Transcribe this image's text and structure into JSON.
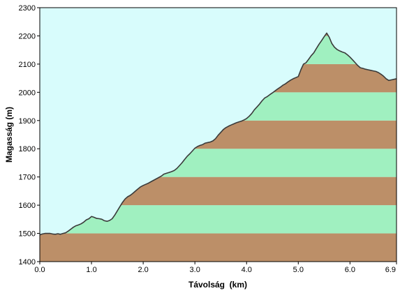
{
  "chart_data": {
    "type": "area",
    "xlabel": "Távolság  (km)",
    "ylabel": "Magasság (m)",
    "xlim": [
      0,
      6.9
    ],
    "ylim": [
      1400,
      2300
    ],
    "x_ticks": [
      "0.0",
      "1.0",
      "2.0",
      "3.0",
      "4.0",
      "5.0",
      "6.0",
      "6.9"
    ],
    "x_tick_values": [
      0,
      1,
      2,
      3,
      4,
      5,
      6,
      6.9
    ],
    "y_ticks": [
      "1400",
      "1500",
      "1600",
      "1700",
      "1800",
      "1900",
      "2000",
      "2100",
      "2200",
      "2300"
    ],
    "y_tick_values": [
      1400,
      1500,
      1600,
      1700,
      1800,
      1900,
      2000,
      2100,
      2200,
      2300
    ],
    "band_step": 100,
    "colors": {
      "sky": "#d8fcfc",
      "band_brown": "#bc8f68",
      "band_green": "#a0f0c0",
      "outline": "#3a3a3a",
      "axis": "#000000"
    },
    "series": [
      {
        "x": [
          0,
          0.05,
          0.1,
          0.2,
          0.25,
          0.3,
          0.35,
          0.4,
          0.45,
          0.5,
          0.55,
          0.6,
          0.65,
          0.7,
          0.75,
          0.8,
          0.85,
          0.9,
          0.95,
          1.0,
          1.05,
          1.1,
          1.15,
          1.2,
          1.25,
          1.3,
          1.35,
          1.4,
          1.45,
          1.5,
          1.55,
          1.6,
          1.65,
          1.7,
          1.75,
          1.8,
          1.85,
          1.9,
          1.95,
          2.0,
          2.05,
          2.1,
          2.15,
          2.2,
          2.25,
          2.3,
          2.35,
          2.4,
          2.45,
          2.5,
          2.55,
          2.6,
          2.65,
          2.7,
          2.75,
          2.8,
          2.85,
          2.9,
          2.95,
          3.0,
          3.05,
          3.1,
          3.15,
          3.2,
          3.25,
          3.3,
          3.35,
          3.4,
          3.45,
          3.5,
          3.55,
          3.6,
          3.65,
          3.7,
          3.75,
          3.8,
          3.85,
          3.9,
          3.95,
          4.0,
          4.05,
          4.1,
          4.15,
          4.2,
          4.25,
          4.3,
          4.35,
          4.4,
          4.45,
          4.5,
          4.55,
          4.6,
          4.65,
          4.7,
          4.75,
          4.8,
          4.85,
          4.9,
          4.95,
          5.0,
          5.05,
          5.1,
          5.15,
          5.2,
          5.25,
          5.3,
          5.35,
          5.4,
          5.45,
          5.5,
          5.55,
          5.6,
          5.65,
          5.7,
          5.75,
          5.8,
          5.85,
          5.9,
          5.95,
          6.0,
          6.05,
          6.1,
          6.15,
          6.2,
          6.25,
          6.3,
          6.35,
          6.4,
          6.45,
          6.5,
          6.55,
          6.6,
          6.65,
          6.7,
          6.75,
          6.8,
          6.85,
          6.9
        ],
        "values": [
          1495,
          1498,
          1500,
          1500,
          1498,
          1497,
          1499,
          1497,
          1500,
          1502,
          1508,
          1515,
          1522,
          1527,
          1530,
          1534,
          1540,
          1548,
          1552,
          1560,
          1557,
          1553,
          1552,
          1550,
          1545,
          1543,
          1546,
          1552,
          1565,
          1580,
          1595,
          1610,
          1622,
          1630,
          1635,
          1642,
          1650,
          1658,
          1665,
          1670,
          1674,
          1678,
          1683,
          1688,
          1693,
          1698,
          1703,
          1710,
          1713,
          1716,
          1719,
          1723,
          1730,
          1740,
          1750,
          1762,
          1773,
          1782,
          1792,
          1802,
          1808,
          1812,
          1815,
          1820,
          1822,
          1824,
          1828,
          1836,
          1848,
          1858,
          1868,
          1875,
          1880,
          1884,
          1888,
          1892,
          1895,
          1898,
          1902,
          1907,
          1915,
          1925,
          1938,
          1948,
          1958,
          1970,
          1980,
          1985,
          1992,
          1998,
          2005,
          2012,
          2018,
          2025,
          2030,
          2037,
          2043,
          2048,
          2052,
          2056,
          2080,
          2100,
          2105,
          2117,
          2130,
          2140,
          2155,
          2170,
          2183,
          2197,
          2210,
          2195,
          2173,
          2160,
          2152,
          2147,
          2143,
          2140,
          2133,
          2125,
          2115,
          2105,
          2095,
          2087,
          2085,
          2082,
          2080,
          2078,
          2076,
          2074,
          2070,
          2064,
          2057,
          2048,
          2042,
          2044,
          2046,
          2048
        ]
      }
    ]
  }
}
